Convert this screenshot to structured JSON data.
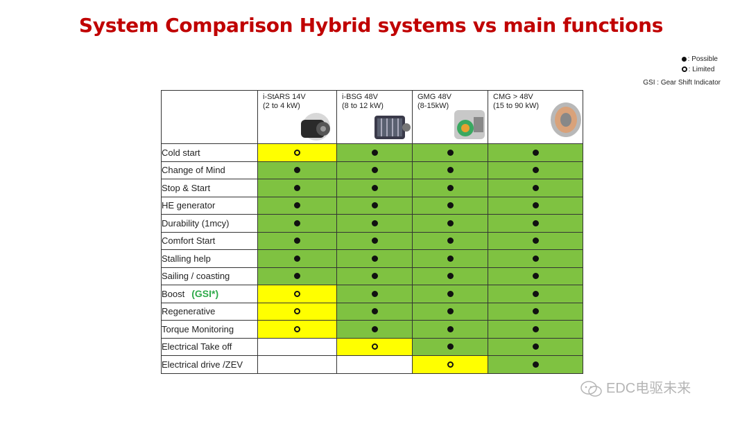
{
  "title": "System Comparison Hybrid systems vs main functions",
  "legend": {
    "possible": ": Possible",
    "limited": ": Limited",
    "gsi_note": "GSI : Gear Shift Indicator"
  },
  "columns": [
    {
      "name": "i-StARS 14V",
      "range": "(2 to 4 kW)"
    },
    {
      "name": "i-BSG 48V",
      "range": "(8 to 12 kW)"
    },
    {
      "name": "GMG 48V",
      "range": "(8-15kW)"
    },
    {
      "name": "CMG > 48V",
      "range": "(15 to 90 kW)"
    }
  ],
  "rows": [
    {
      "label": "Cold start",
      "extra": "",
      "values": [
        "limited",
        "possible",
        "possible",
        "possible"
      ]
    },
    {
      "label": "Change of Mind",
      "extra": "",
      "values": [
        "possible",
        "possible",
        "possible",
        "possible"
      ]
    },
    {
      "label": "Stop & Start",
      "extra": "",
      "values": [
        "possible",
        "possible",
        "possible",
        "possible"
      ]
    },
    {
      "label": "HE generator",
      "extra": "",
      "values": [
        "possible",
        "possible",
        "possible",
        "possible"
      ]
    },
    {
      "label": "Durability (1mcy)",
      "extra": "",
      "values": [
        "possible",
        "possible",
        "possible",
        "possible"
      ]
    },
    {
      "label": "Comfort Start",
      "extra": "",
      "values": [
        "possible",
        "possible",
        "possible",
        "possible"
      ]
    },
    {
      "label": "Stalling help",
      "extra": "",
      "values": [
        "possible",
        "possible",
        "possible",
        "possible"
      ]
    },
    {
      "label": "Sailing / coasting",
      "extra": "",
      "values": [
        "possible",
        "possible",
        "possible",
        "possible"
      ]
    },
    {
      "label": "Boost",
      "extra": "(GSI*)",
      "values": [
        "limited",
        "possible",
        "possible",
        "possible"
      ]
    },
    {
      "label": "Regenerative",
      "extra": "",
      "values": [
        "limited",
        "possible",
        "possible",
        "possible"
      ]
    },
    {
      "label": "Torque Monitoring",
      "extra": "",
      "values": [
        "limited",
        "possible",
        "possible",
        "possible"
      ]
    },
    {
      "label": "Electrical Take off",
      "extra": "",
      "values": [
        "none",
        "limited",
        "possible",
        "possible"
      ]
    },
    {
      "label": "Electrical drive /ZEV",
      "extra": "",
      "values": [
        "none",
        "none",
        "limited",
        "possible"
      ]
    }
  ],
  "colors": {
    "possible_bg": "#7fc241",
    "limited_bg": "#ffff00",
    "title": "#c00000",
    "gsi_text": "#2eaa4a"
  },
  "watermark": "EDC电驱未来"
}
